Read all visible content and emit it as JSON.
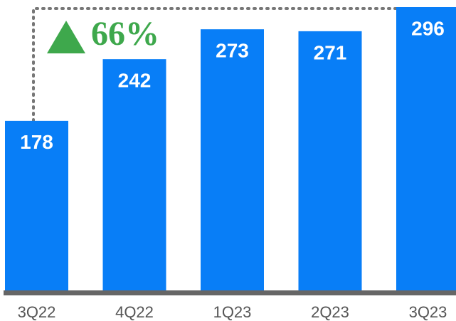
{
  "chart_data": {
    "type": "bar",
    "categories": [
      "3Q22",
      "4Q22",
      "1Q23",
      "2Q23",
      "3Q23"
    ],
    "values": [
      178,
      242,
      273,
      271,
      296
    ],
    "color": "#087ef7",
    "annotation": "66%"
  }
}
